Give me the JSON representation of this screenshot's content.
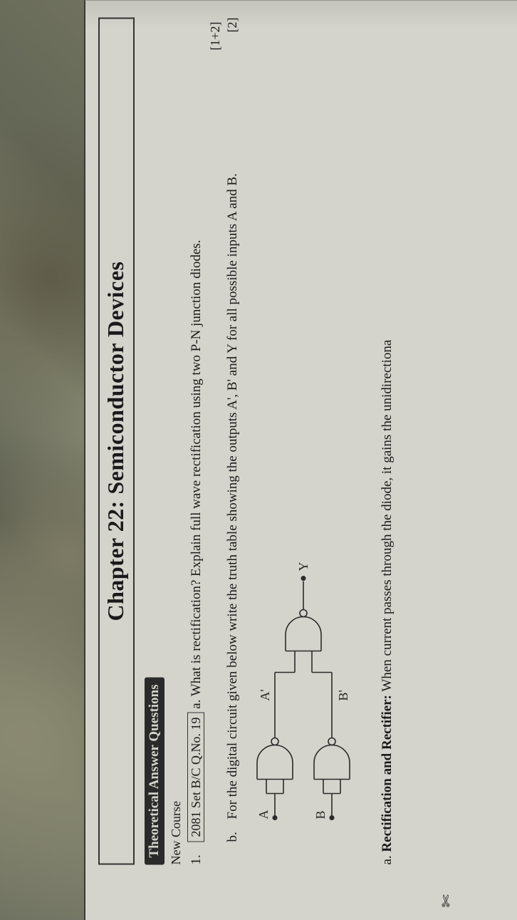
{
  "chapter": {
    "title": "Chapter 22: Semiconductor Devices"
  },
  "section": {
    "heading": "Theoretical Answer Questions",
    "subhead": "New Course"
  },
  "q1": {
    "num": "1.",
    "ref": "2081 Set B/C Q.No. 19",
    "a_letter": "a.",
    "a_text": "What is rectification? Explain full wave rectification using two P-N junction diodes.",
    "a_marks": "[1+2]",
    "b_letter": "b.",
    "b_text": "For the digital circuit given below write the truth table showing the outputs A', B' and Y for all possible inputs A and B.",
    "b_marks": "[2]"
  },
  "circuit": {
    "inputA": "A",
    "inputB": "B",
    "midA": "A'",
    "midB": "B'",
    "out": "Y",
    "stroke": "#2a2a2a",
    "stroke_width": 1.6,
    "font_size": 18
  },
  "answer": {
    "letter": "a.",
    "label": "Rectification and Rectifier:",
    "text": " When current passes through the diode, it gains the unidirectiona"
  },
  "colors": {
    "paper": "#d4d4cc",
    "ink": "#1a1a1a",
    "band_bg": "#2a2a2a",
    "band_fg": "#d4d4cc"
  }
}
